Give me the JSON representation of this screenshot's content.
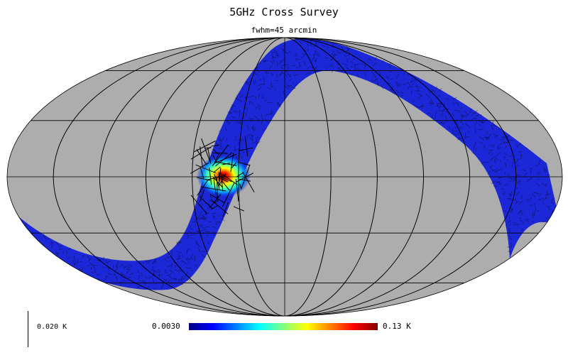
{
  "title": "5GHz Cross Survey",
  "subtitle": "fwhm=45 arcmin",
  "scale": {
    "label": "0.020  K"
  },
  "colorbar": {
    "min_label": "0.0030",
    "max_label": "0.13  K",
    "colormap": [
      "#00007f",
      "#0000ff",
      "#007fff",
      "#00ffff",
      "#7fff7f",
      "#ffff00",
      "#ff7f00",
      "#ff0000",
      "#7f0000"
    ]
  },
  "colors": {
    "background": "#ffffff",
    "map_masked": "#adadad",
    "survey_band": "#1c28d8",
    "graticule": "#000000"
  },
  "map": {
    "projection": "Mollweide",
    "graticule": {
      "parallels_deg": [
        -60,
        -30,
        0,
        30,
        60
      ],
      "meridians_deg": [
        -150,
        -120,
        -90,
        -60,
        -30,
        0,
        30,
        60,
        90,
        120,
        150
      ]
    },
    "hotspot": {
      "lon_deg": 45,
      "lat_deg": 0
    }
  }
}
